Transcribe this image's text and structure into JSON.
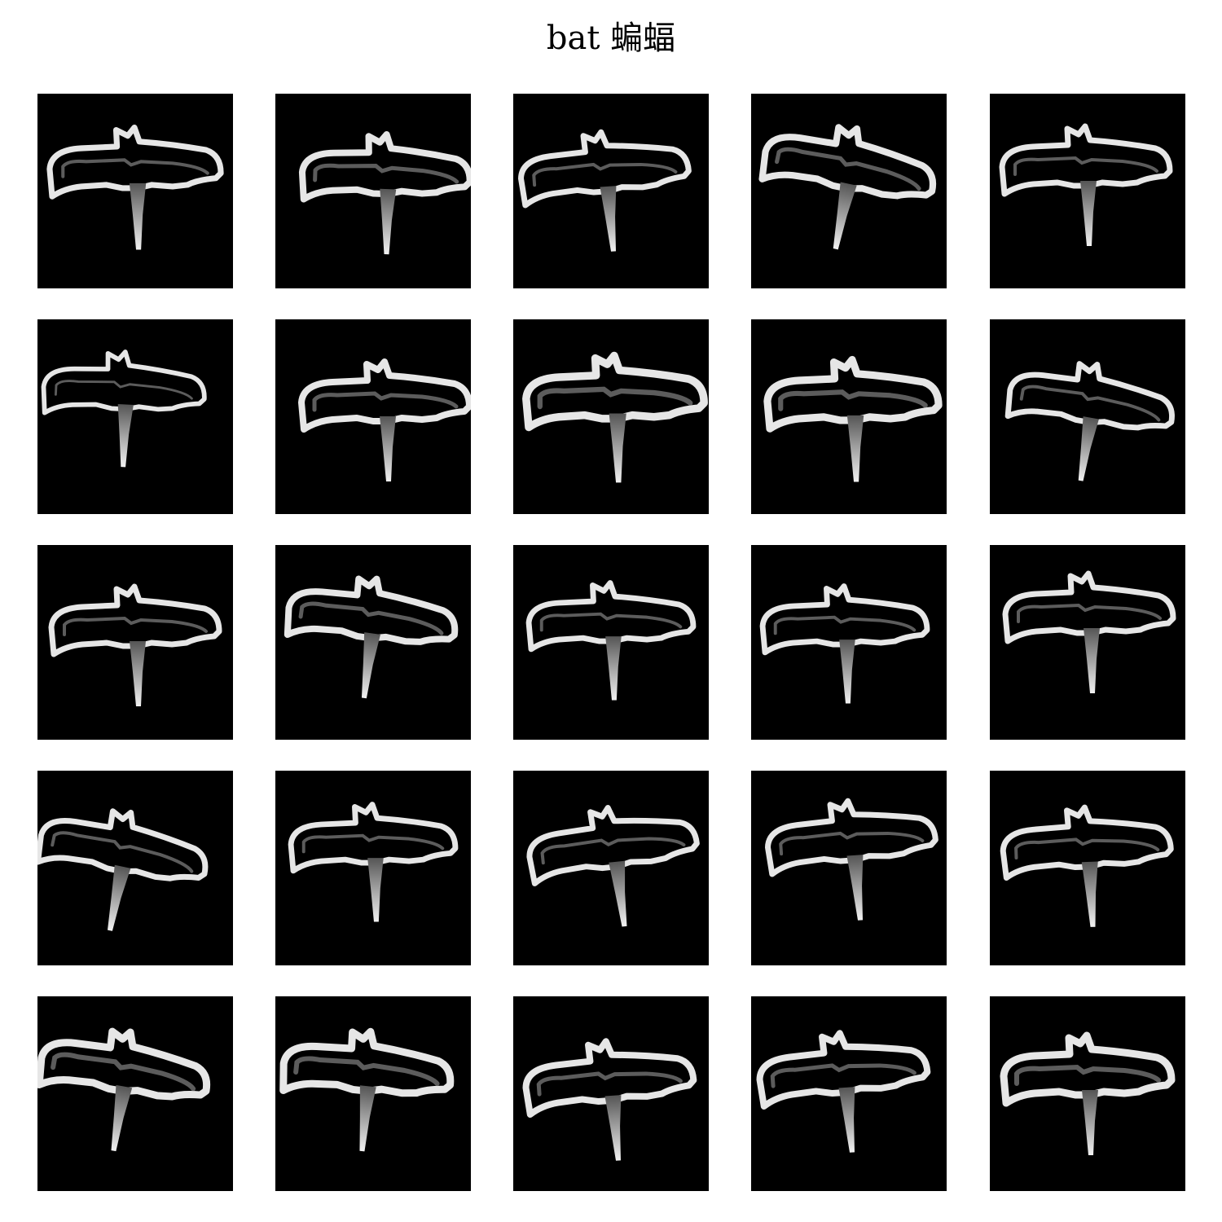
{
  "title": "bat 蝙蝠",
  "grid": {
    "rows": 5,
    "columns": 5
  },
  "colors": {
    "background": "#ffffff",
    "tile_background": "#000000",
    "stroke": "#e6e6e6"
  },
  "tiles": [
    {
      "subject": "bat-sketch-icon"
    },
    {
      "subject": "bat-sketch-icon"
    },
    {
      "subject": "bat-sketch-icon"
    },
    {
      "subject": "bat-sketch-icon"
    },
    {
      "subject": "bat-sketch-icon"
    },
    {
      "subject": "bat-sketch-icon"
    },
    {
      "subject": "bat-sketch-icon"
    },
    {
      "subject": "bat-sketch-icon"
    },
    {
      "subject": "bat-sketch-icon"
    },
    {
      "subject": "bat-sketch-icon"
    },
    {
      "subject": "bat-sketch-icon"
    },
    {
      "subject": "bat-sketch-icon"
    },
    {
      "subject": "bat-sketch-icon"
    },
    {
      "subject": "bat-sketch-icon"
    },
    {
      "subject": "bat-sketch-icon"
    },
    {
      "subject": "bat-sketch-icon"
    },
    {
      "subject": "bat-sketch-icon"
    },
    {
      "subject": "bat-sketch-icon"
    },
    {
      "subject": "bat-sketch-icon"
    },
    {
      "subject": "bat-sketch-icon"
    },
    {
      "subject": "bat-sketch-icon"
    },
    {
      "subject": "bat-sketch-icon"
    },
    {
      "subject": "bat-sketch-icon"
    },
    {
      "subject": "bat-sketch-icon"
    },
    {
      "subject": "bat-sketch-icon"
    }
  ]
}
